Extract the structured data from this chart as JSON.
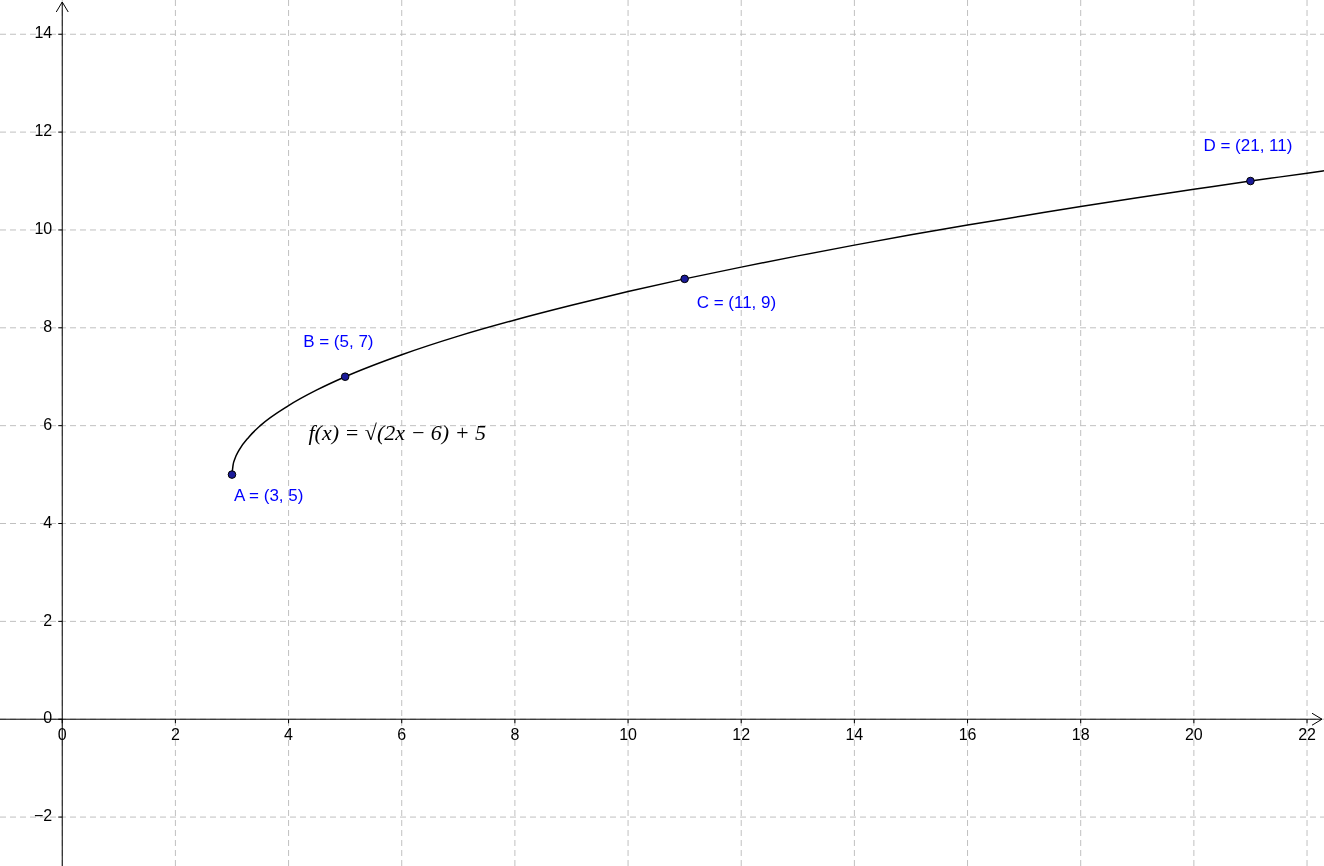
{
  "chart_data": {
    "type": "line",
    "xlim": [
      -1.1,
      22.3
    ],
    "ylim": [
      -3,
      14.7
    ],
    "xticks": [
      0,
      2,
      4,
      6,
      8,
      10,
      12,
      14,
      16,
      18,
      20,
      22
    ],
    "yticks": [
      -2,
      0,
      2,
      4,
      6,
      8,
      10,
      12,
      14
    ],
    "grid": true,
    "line_style": "solid",
    "marker": "none",
    "series": [
      {
        "color": "#000000",
        "x": [
          3,
          3.02,
          3.05,
          3.125,
          3.3,
          3.5,
          4,
          4.5,
          5,
          6,
          7,
          8,
          9,
          10,
          11,
          12,
          13,
          14,
          15,
          16,
          17,
          18,
          19,
          20,
          21,
          22,
          22.3
        ],
        "values": [
          5,
          5.2,
          5.32,
          5.5,
          5.77,
          6,
          6.41,
          6.73,
          7,
          7.45,
          7.83,
          8.16,
          8.46,
          8.74,
          9,
          9.24,
          9.47,
          9.69,
          9.9,
          10.1,
          10.29,
          10.48,
          10.66,
          10.83,
          11,
          11.16,
          11.21
        ]
      },
      {
        "type": "scatter",
        "color": "#1a1a99",
        "marker": "circle",
        "x": [
          3,
          5,
          11,
          21
        ],
        "values": [
          5,
          7,
          9,
          11
        ]
      }
    ],
    "annotations": [
      {
        "text": "A = (3, 5)",
        "x": 3,
        "y": 5
      },
      {
        "text": "B = (5, 7)",
        "x": 5,
        "y": 7
      },
      {
        "text": "C = (11, 9)",
        "x": 11,
        "y": 9
      },
      {
        "text": "D = (21, 11)",
        "x": 21,
        "y": 11
      },
      "f(x) = √(2x − 6) + 5"
    ]
  }
}
